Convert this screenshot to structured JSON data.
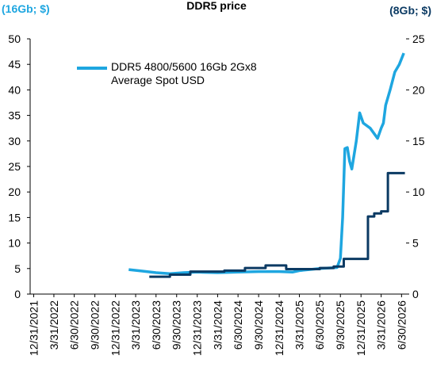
{
  "chart_data": {
    "type": "line",
    "title": "DDR5 price",
    "ylabel": "(16Gb; $)",
    "y2label": "(8Gb; $)",
    "xlim": [
      "12/15/2021",
      "7/20/2026"
    ],
    "xticks": [
      "12/31/2021",
      "3/31/2022",
      "6/30/2022",
      "9/30/2022",
      "12/31/2022",
      "3/31/2023",
      "6/30/2023",
      "9/30/2023",
      "12/31/2023",
      "3/31/2024",
      "6/30/2024",
      "9/30/2024",
      "12/31/2024",
      "3/31/2025",
      "6/30/2025",
      "9/30/2025",
      "12/31/2025",
      "3/31/2026",
      "6/30/2026"
    ],
    "ylim": [
      0,
      50
    ],
    "yticks": [
      0,
      5,
      10,
      15,
      20,
      25,
      30,
      35,
      40,
      45,
      50
    ],
    "y2lim": [
      0,
      25
    ],
    "y2ticks": [
      0,
      5,
      10,
      15,
      20,
      25
    ],
    "series": [
      {
        "name": "DDR5 4800/5600 16Gb 2Gx8 Average Spot USD",
        "color": "#1ea6e0",
        "x": [
          "2/28/2023",
          "4/30/2023",
          "6/30/2023",
          "8/31/2023",
          "10/31/2023",
          "12/31/2023",
          "3/31/2024",
          "6/30/2024",
          "9/30/2024",
          "12/31/2024",
          "2/28/2025",
          "3/31/2025",
          "6/30/2025",
          "9/15/2025",
          "9/30/2025",
          "10/10/2025",
          "10/20/2025",
          "10/31/2025",
          "11/10/2025",
          "11/20/2025",
          "12/10/2025",
          "12/25/2025",
          "1/10/2026",
          "2/10/2026",
          "3/15/2026",
          "3/31/2026",
          "4/10/2026",
          "4/20/2026",
          "5/10/2026",
          "5/31/2026",
          "6/20/2026",
          "7/10/2026"
        ],
        "values": [
          4.8,
          4.5,
          4.2,
          4.0,
          4.2,
          4.3,
          4.2,
          4.3,
          4.4,
          4.4,
          4.3,
          4.6,
          5.0,
          5.2,
          7,
          15,
          28.5,
          28.7,
          26,
          24.5,
          30,
          35.5,
          33.5,
          32.5,
          30.5,
          32.5,
          33.5,
          37,
          40,
          43.5,
          45,
          47.2
        ]
      },
      {
        "color": "#0b3a63",
        "axis": "y2",
        "step": true,
        "x": [
          "5/31/2023",
          "8/31/2023",
          "11/30/2023",
          "4/30/2024",
          "7/31/2024",
          "10/31/2024",
          "1/31/2025",
          "6/30/2025",
          "8/31/2025",
          "10/15/2025",
          "1/31/2026",
          "2/28/2026",
          "3/31/2026",
          "4/30/2026",
          "7/15/2026"
        ],
        "values": [
          1.7,
          1.9,
          2.2,
          2.3,
          2.55,
          2.8,
          2.45,
          2.55,
          2.7,
          3.45,
          7.6,
          7.9,
          8.1,
          11.85,
          11.85
        ]
      }
    ]
  }
}
